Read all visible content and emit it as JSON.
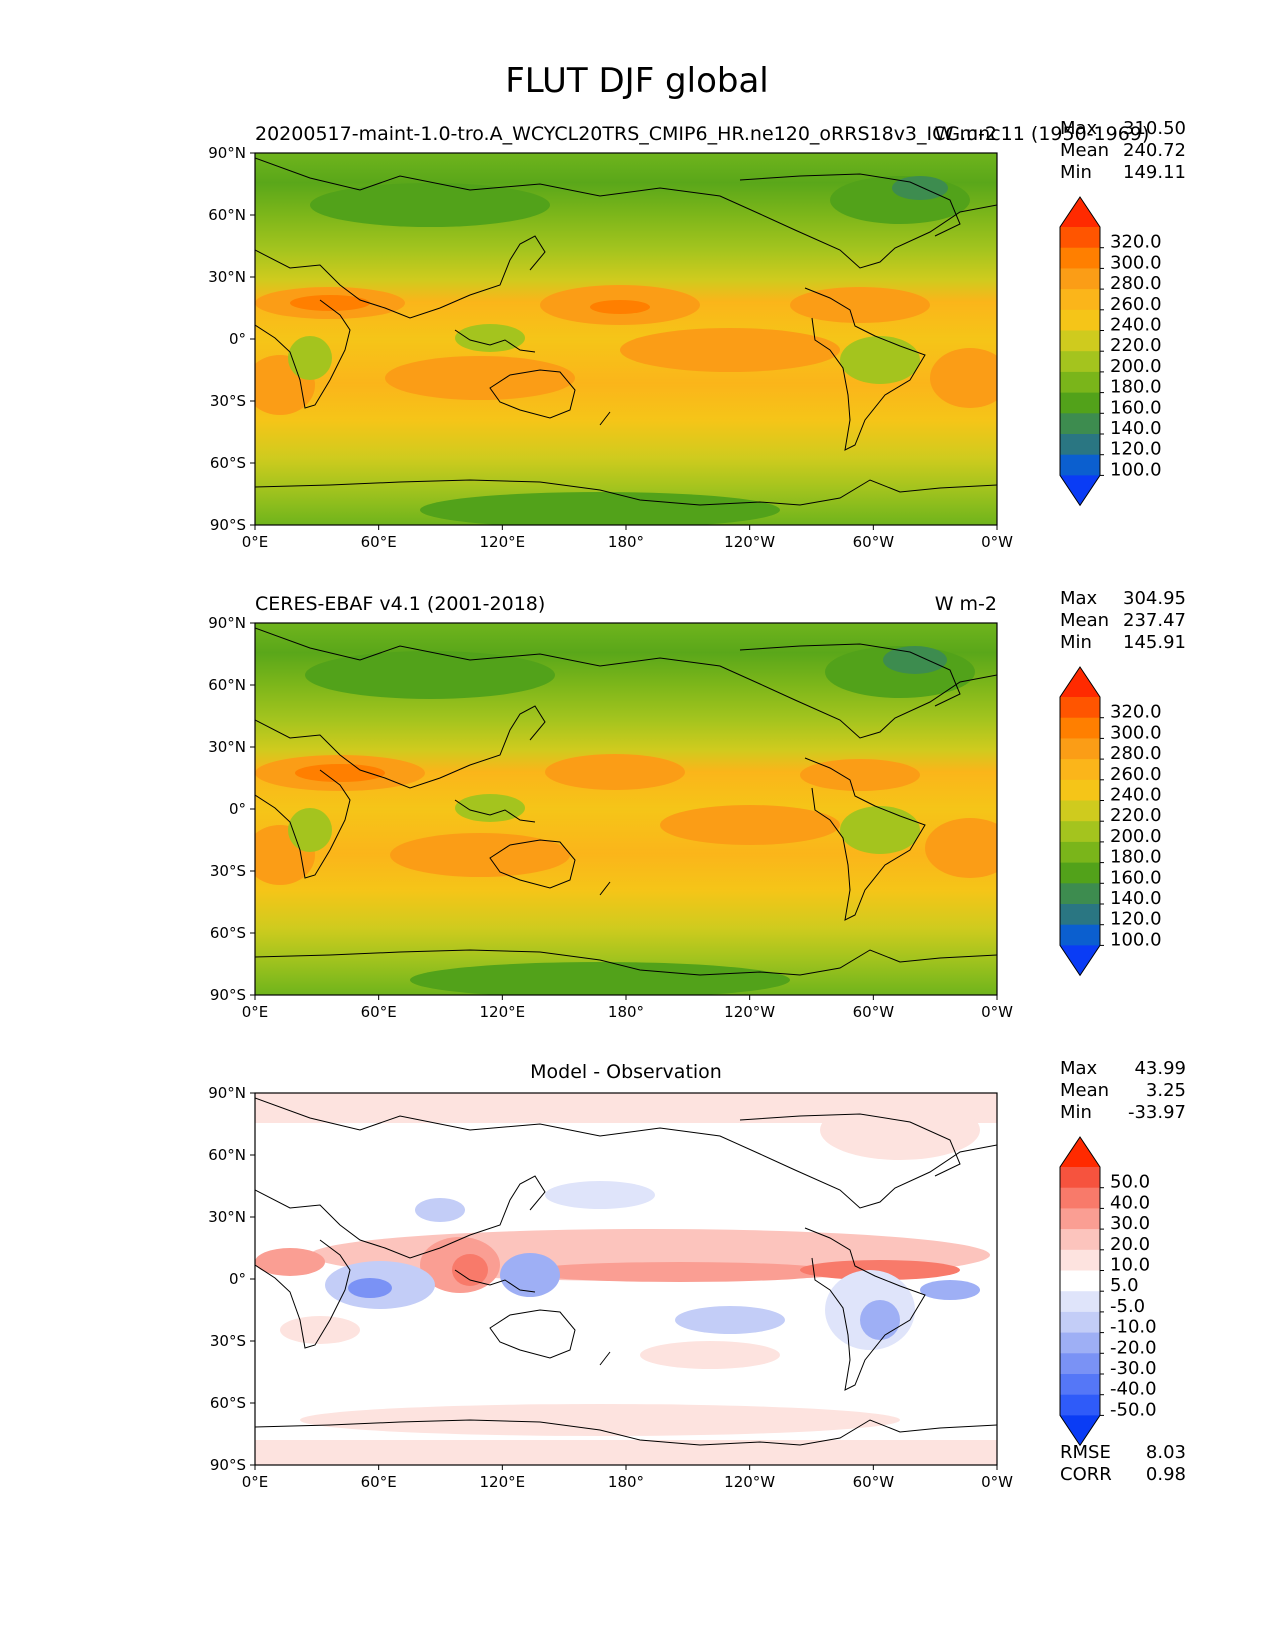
{
  "title": "FLUT DJF global",
  "x_ticks": [
    "0°E",
    "60°E",
    "120°E",
    "180°",
    "120°W",
    "60°W",
    "0°W"
  ],
  "y_ticks": [
    "90°N",
    "60°N",
    "30°N",
    "0°",
    "30°S",
    "60°S",
    "90°S"
  ],
  "panels": [
    {
      "id": "test",
      "left_title": "20200517-maint-1.0-tro.A_WCYCL20TRS_CMIP6_HR.ne120_oRRS18v3_ICG.unc11 (1950-1969)",
      "right_title": "W m-2",
      "center_title": "",
      "stats": [
        {
          "label": "Max",
          "value": "310.50"
        },
        {
          "label": "Mean",
          "value": "240.72"
        },
        {
          "label": "Min",
          "value": "149.11"
        }
      ],
      "colorbar": {
        "levels": [
          "320.0",
          "300.0",
          "280.0",
          "260.0",
          "240.0",
          "220.0",
          "200.0",
          "180.0",
          "160.0",
          "140.0",
          "120.0",
          "100.0"
        ],
        "colors": [
          "#ff2a00",
          "#ff5500",
          "#ff7f00",
          "#fb9d16",
          "#fbb51a",
          "#f5c518",
          "#cfcb1e",
          "#a4c41e",
          "#7ab51a",
          "#52a21a",
          "#3d8c4f",
          "#2a7682",
          "#0b5fcf",
          "#0a3cf5"
        ]
      },
      "footer_stats": []
    },
    {
      "id": "reference",
      "left_title": "CERES-EBAF v4.1 (2001-2018)",
      "right_title": "W m-2",
      "center_title": "",
      "stats": [
        {
          "label": "Max",
          "value": "304.95"
        },
        {
          "label": "Mean",
          "value": "237.47"
        },
        {
          "label": "Min",
          "value": "145.91"
        }
      ],
      "colorbar": {
        "levels": [
          "320.0",
          "300.0",
          "280.0",
          "260.0",
          "240.0",
          "220.0",
          "200.0",
          "180.0",
          "160.0",
          "140.0",
          "120.0",
          "100.0"
        ],
        "colors": [
          "#ff2a00",
          "#ff5500",
          "#ff7f00",
          "#fb9d16",
          "#fbb51a",
          "#f5c518",
          "#cfcb1e",
          "#a4c41e",
          "#7ab51a",
          "#52a21a",
          "#3d8c4f",
          "#2a7682",
          "#0b5fcf",
          "#0a3cf5"
        ]
      },
      "footer_stats": []
    },
    {
      "id": "diff",
      "left_title": "",
      "right_title": "",
      "center_title": "Model - Observation",
      "stats": [
        {
          "label": "Max",
          "value": "43.99"
        },
        {
          "label": "Mean",
          "value": "3.25"
        },
        {
          "label": "Min",
          "value": "-33.97"
        }
      ],
      "colorbar": {
        "levels": [
          "50.0",
          "40.0",
          "30.0",
          "20.0",
          "10.0",
          "5.0",
          "-5.0",
          "-10.0",
          "-20.0",
          "-30.0",
          "-40.0",
          "-50.0"
        ],
        "colors": [
          "#ff2a00",
          "#f6533e",
          "#f87a6a",
          "#fa9e93",
          "#fcc4bd",
          "#fde3df",
          "#ffffff",
          "#dfe4fa",
          "#c3cdf7",
          "#9eaff5",
          "#7a92f5",
          "#5577f7",
          "#2f5bf9",
          "#0a3cf5"
        ]
      },
      "footer_stats": [
        {
          "label": "RMSE",
          "value": "8.03"
        },
        {
          "label": "CORR",
          "value": "0.98"
        }
      ]
    }
  ]
}
